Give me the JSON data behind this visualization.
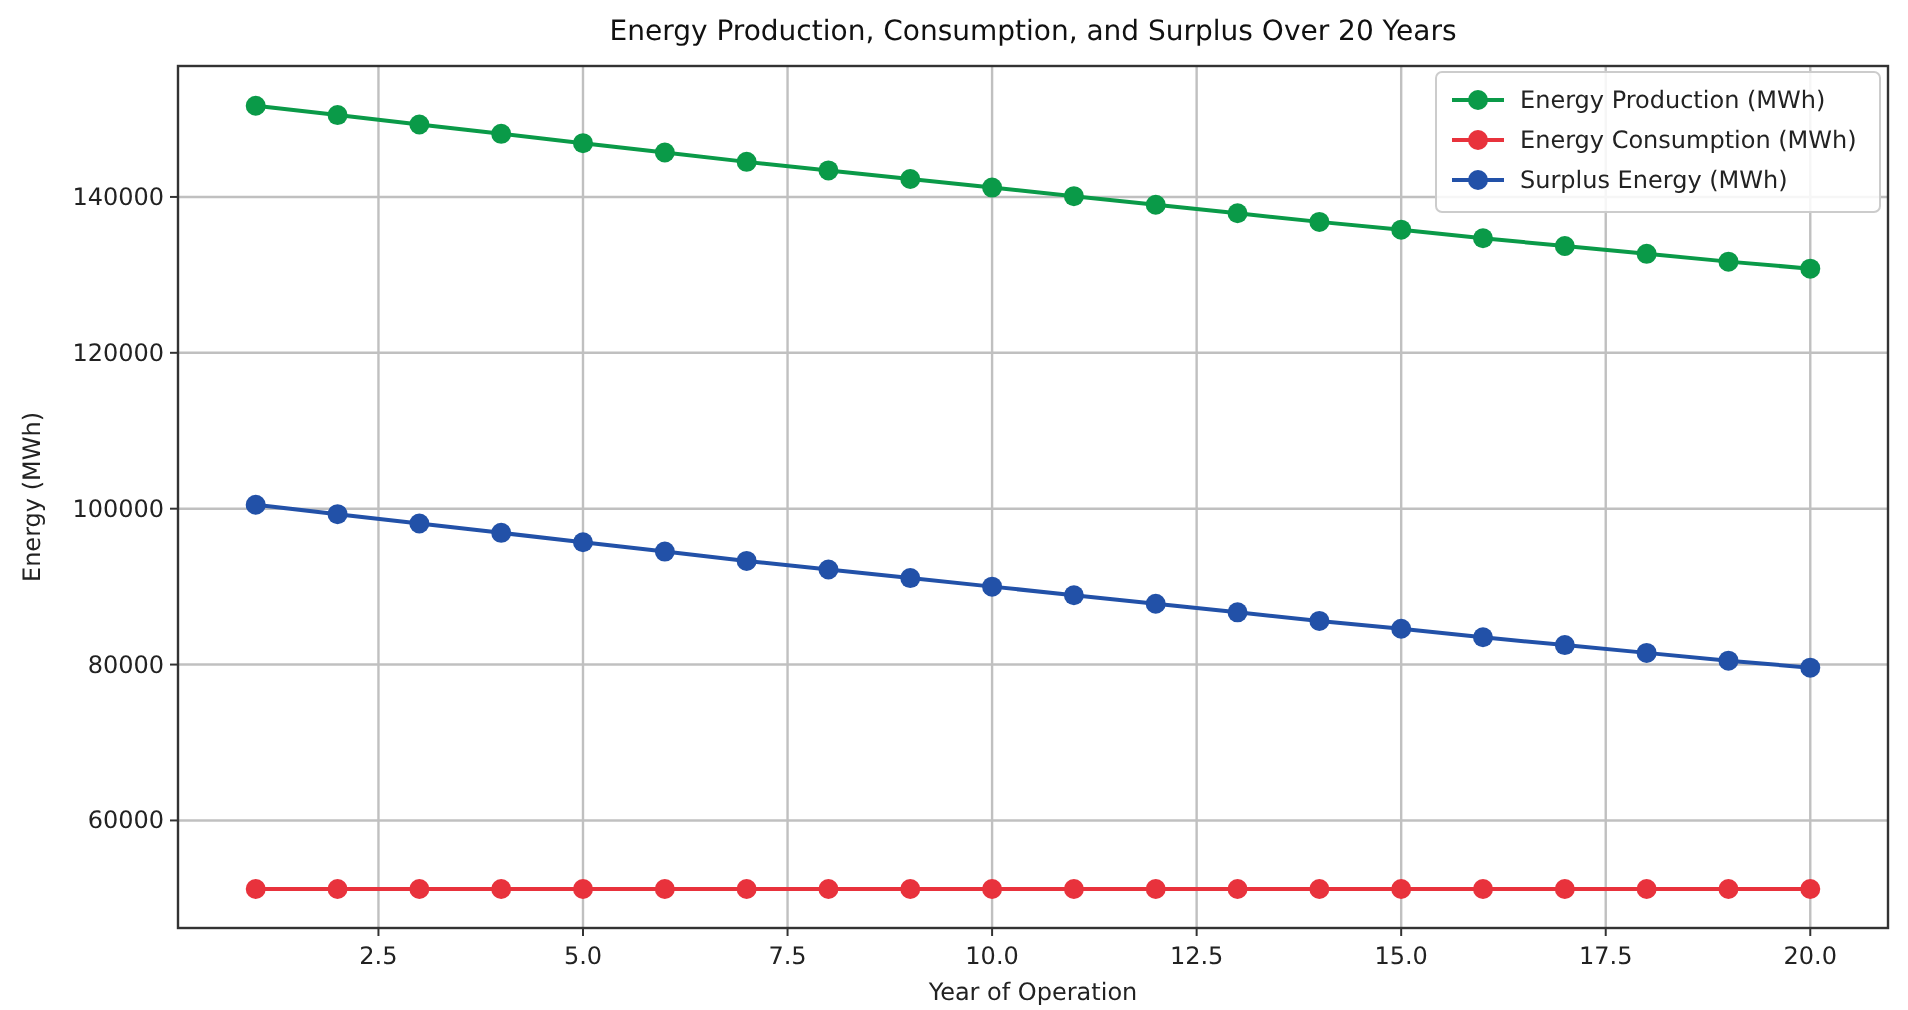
{
  "chart_data": {
    "type": "line",
    "title": "Energy Production, Consumption, and Surplus Over 20 Years",
    "xlabel": "Year of Operation",
    "ylabel": "Energy (MWh)",
    "x": [
      1,
      2,
      3,
      4,
      5,
      6,
      7,
      8,
      9,
      10,
      11,
      12,
      13,
      14,
      15,
      16,
      17,
      18,
      19,
      20
    ],
    "series": [
      {
        "name": "Energy Production (MWh)",
        "color": "#0a9a48",
        "values": [
          151700,
          150500,
          149300,
          148100,
          146900,
          145700,
          144500,
          143400,
          142300,
          141200,
          140100,
          139000,
          137900,
          136800,
          135800,
          134700,
          133700,
          132700,
          131700,
          130800
        ]
      },
      {
        "name": "Energy Consumption (MWh)",
        "color": "#e8323c",
        "values": [
          51200,
          51200,
          51200,
          51200,
          51200,
          51200,
          51200,
          51200,
          51200,
          51200,
          51200,
          51200,
          51200,
          51200,
          51200,
          51200,
          51200,
          51200,
          51200,
          51200
        ]
      },
      {
        "name": "Surplus Energy (MWh)",
        "color": "#2251a8",
        "values": [
          100500,
          99300,
          98100,
          96900,
          95700,
          94500,
          93300,
          92200,
          91100,
          90000,
          88900,
          87800,
          86700,
          85600,
          84600,
          83500,
          82500,
          81500,
          80500,
          79600
        ]
      }
    ],
    "xlim": [
      0.05,
      20.95
    ],
    "xticks": [
      {
        "value": 2.5,
        "label": "2.5"
      },
      {
        "value": 5,
        "label": "5.0"
      },
      {
        "value": 7.5,
        "label": "7.5"
      },
      {
        "value": 10,
        "label": "10.0"
      },
      {
        "value": 12.5,
        "label": "12.5"
      },
      {
        "value": 15,
        "label": "15.0"
      },
      {
        "value": 17.5,
        "label": "17.5"
      },
      {
        "value": 20,
        "label": "20.0"
      }
    ],
    "ylim": [
      46200,
      156800
    ],
    "yticks": [
      60000,
      80000,
      100000,
      120000,
      140000
    ],
    "grid": true,
    "legend": "top right",
    "marker": "circle",
    "line_style": "solid"
  }
}
